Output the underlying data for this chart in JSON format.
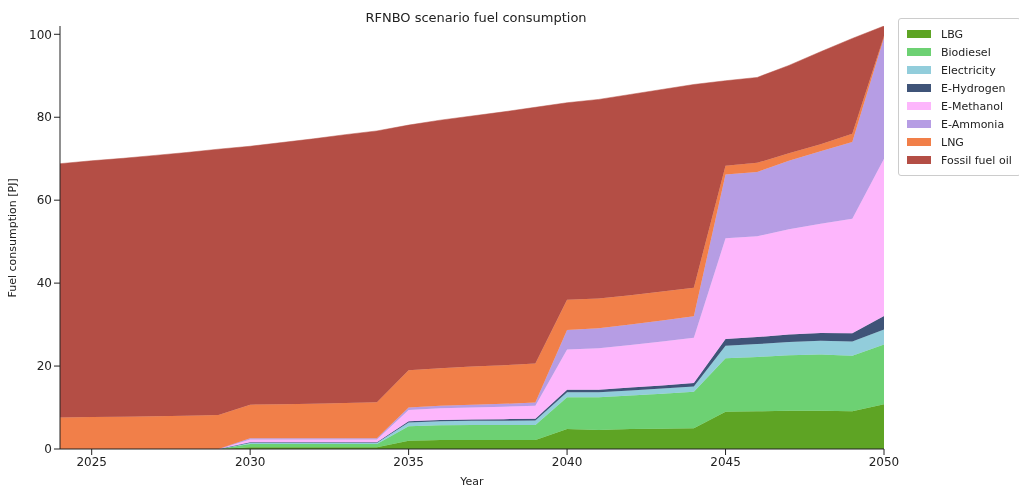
{
  "chart_data": {
    "type": "area",
    "stacked": true,
    "title": "RFNBO scenario fuel consumption",
    "xlabel": "Year",
    "ylabel": "Fuel consumption [PJ]",
    "x": [
      2024,
      2025,
      2026,
      2027,
      2028,
      2029,
      2030,
      2031,
      2032,
      2033,
      2034,
      2035,
      2036,
      2037,
      2038,
      2039,
      2040,
      2041,
      2042,
      2043,
      2044,
      2045,
      2046,
      2047,
      2048,
      2049,
      2050
    ],
    "xlim": [
      2024,
      2050
    ],
    "xticks": [
      2025,
      2030,
      2035,
      2040,
      2045,
      2050
    ],
    "ylim": [
      0,
      102
    ],
    "yticks": [
      0,
      20,
      40,
      60,
      80,
      100
    ],
    "grid": false,
    "legend": "top right",
    "series": [
      {
        "name": "LBG",
        "color": "#5ea424",
        "values": [
          0,
          0,
          0,
          0,
          0,
          0,
          0.4,
          0.4,
          0.4,
          0.4,
          0.4,
          2.0,
          2.2,
          2.2,
          2.2,
          2.2,
          4.8,
          4.6,
          4.8,
          4.9,
          5.0,
          9.0,
          9.1,
          9.2,
          9.2,
          9.1,
          10.8
        ]
      },
      {
        "name": "Biodiesel",
        "color": "#6dd173",
        "values": [
          0,
          0,
          0,
          0,
          0,
          0,
          0.8,
          0.8,
          0.8,
          0.8,
          0.8,
          3.5,
          3.5,
          3.6,
          3.6,
          3.6,
          7.7,
          7.9,
          8.1,
          8.4,
          8.8,
          12.9,
          13.1,
          13.4,
          13.6,
          13.4,
          14.4
        ]
      },
      {
        "name": "Electricity",
        "color": "#92cddb",
        "values": [
          0,
          0,
          0,
          0,
          0,
          0,
          0.3,
          0.3,
          0.3,
          0.3,
          0.3,
          0.9,
          1.0,
          1.0,
          1.0,
          1.1,
          1.2,
          1.2,
          1.2,
          1.3,
          1.3,
          3.0,
          3.1,
          3.2,
          3.3,
          3.4,
          3.6
        ]
      },
      {
        "name": "E-Hydrogen",
        "color": "#3f5478",
        "values": [
          0,
          0,
          0,
          0,
          0,
          0,
          0.1,
          0.1,
          0.1,
          0.1,
          0.1,
          0.3,
          0.3,
          0.3,
          0.4,
          0.4,
          0.6,
          0.6,
          0.7,
          0.7,
          0.8,
          1.6,
          1.7,
          1.8,
          1.9,
          2.0,
          3.3
        ]
      },
      {
        "name": "E-Methanol",
        "color": "#fdb6fc",
        "values": [
          0,
          0,
          0,
          0,
          0,
          0,
          0.7,
          0.7,
          0.7,
          0.7,
          0.7,
          2.7,
          2.8,
          2.9,
          3.0,
          3.1,
          9.7,
          10.0,
          10.3,
          10.6,
          10.9,
          24.3,
          24.3,
          25.4,
          26.3,
          27.6,
          37.9
        ]
      },
      {
        "name": "E-Ammonia",
        "color": "#b69de4",
        "values": [
          0,
          0,
          0,
          0,
          0,
          0,
          0.3,
          0.3,
          0.3,
          0.3,
          0.3,
          0.6,
          0.6,
          0.7,
          0.7,
          0.8,
          4.7,
          4.8,
          4.9,
          5.1,
          5.2,
          15.4,
          15.5,
          16.5,
          17.5,
          18.5,
          29.2
        ]
      },
      {
        "name": "LNG",
        "color": "#f17f49",
        "values": [
          7.6,
          7.7,
          7.8,
          7.9,
          8.0,
          8.2,
          8.1,
          8.2,
          8.3,
          8.5,
          8.7,
          9.0,
          9.1,
          9.2,
          9.3,
          9.4,
          7.3,
          7.2,
          7.1,
          7.0,
          6.9,
          2.1,
          2.2,
          1.8,
          1.7,
          2.0,
          0.4
        ]
      },
      {
        "name": "Fossil fuel oil",
        "color": "#b44e45",
        "values": [
          61.2,
          61.8,
          62.3,
          62.9,
          63.5,
          64.1,
          62.3,
          63.1,
          63.9,
          64.7,
          65.4,
          59.1,
          59.8,
          60.4,
          61.1,
          61.8,
          47.5,
          48.0,
          48.4,
          48.7,
          49.0,
          20.5,
          20.6,
          21.2,
          22.3,
          23.0,
          2.4
        ]
      }
    ]
  }
}
